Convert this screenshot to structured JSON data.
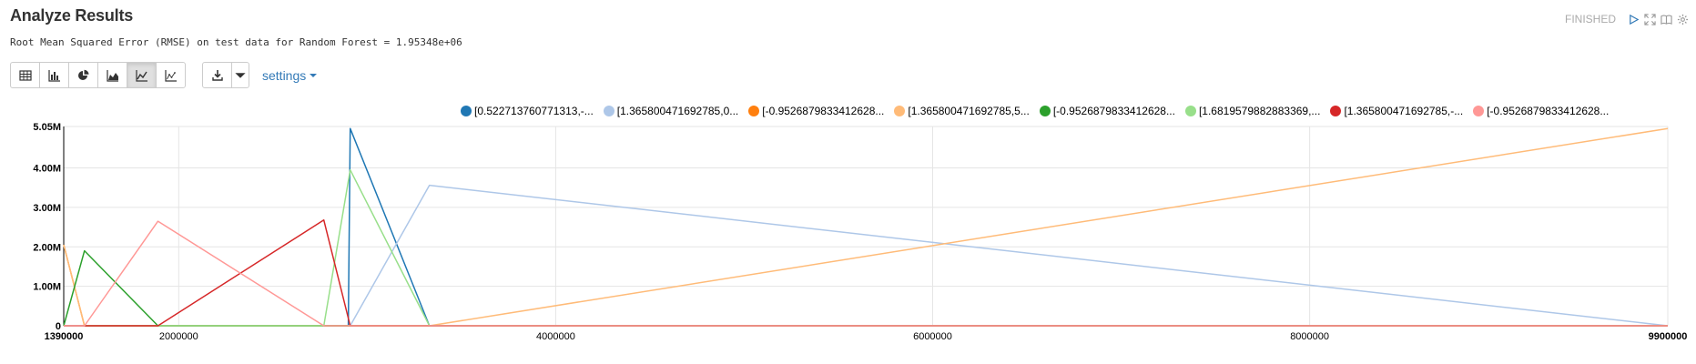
{
  "header": {
    "title": "Analyze Results",
    "status": "FINISHED",
    "icons": [
      "play-icon",
      "expand-icon",
      "book-icon",
      "gear-icon"
    ]
  },
  "rmse_text": "Root Mean Squared Error (RMSE) on test data for Random Forest = 1.95348e+06",
  "toolbar": {
    "chart_buttons": [
      "table",
      "bar-chart",
      "pie-chart",
      "area-chart",
      "line-chart",
      "scatter-chart"
    ],
    "active_button": "line-chart",
    "settings_label": "settings"
  },
  "chart_data": {
    "type": "line",
    "xlim": [
      1390000,
      9900000
    ],
    "ylim": [
      0,
      5050000
    ],
    "x_ticks": [
      {
        "value": 1390000,
        "label": "1390000",
        "bold": true
      },
      {
        "value": 2000000,
        "label": "2000000"
      },
      {
        "value": 4000000,
        "label": "4000000"
      },
      {
        "value": 6000000,
        "label": "6000000"
      },
      {
        "value": 8000000,
        "label": "8000000"
      },
      {
        "value": 9900000,
        "label": "9900000",
        "bold": true
      }
    ],
    "y_ticks": [
      {
        "value": 0,
        "label": "0"
      },
      {
        "value": 1000000,
        "label": "1.00M"
      },
      {
        "value": 2000000,
        "label": "2.00M"
      },
      {
        "value": 3000000,
        "label": "3.00M"
      },
      {
        "value": 4000000,
        "label": "4.00M"
      },
      {
        "value": 5050000,
        "label": "5.05M"
      }
    ],
    "grid": true,
    "legend_position": "top",
    "series": [
      {
        "name": "[0.522713760771313,-...",
        "color": "#1f77b4",
        "points": [
          [
            1390000,
            0
          ],
          [
            2900000,
            0
          ],
          [
            2900000,
            0
          ],
          [
            2910000,
            5000000
          ],
          [
            3330000,
            0
          ],
          [
            9900000,
            0
          ]
        ]
      },
      {
        "name": "[1.365800471692785,0...",
        "color": "#aec7e8",
        "points": [
          [
            1390000,
            0
          ],
          [
            2910000,
            0
          ],
          [
            3330000,
            3560000
          ],
          [
            9900000,
            0
          ]
        ]
      },
      {
        "name": "[-0.9526879833412628...",
        "color": "#ff7f0e",
        "points": [
          [
            1390000,
            2050000
          ],
          [
            1500000,
            0
          ],
          [
            9900000,
            0
          ]
        ]
      },
      {
        "name": "[1.365800471692785,5...",
        "color": "#ffbb78",
        "points": [
          [
            1390000,
            2050000
          ],
          [
            1500000,
            0
          ],
          [
            3330000,
            0
          ],
          [
            9900000,
            5000000
          ]
        ]
      },
      {
        "name": "[-0.9526879833412628...",
        "color": "#2ca02c",
        "points": [
          [
            1390000,
            0
          ],
          [
            1500000,
            1900000
          ],
          [
            1890000,
            0
          ],
          [
            9900000,
            0
          ]
        ]
      },
      {
        "name": "[1.6819579882883369,...",
        "color": "#98df8a",
        "points": [
          [
            1390000,
            0
          ],
          [
            2770000,
            0
          ],
          [
            2910000,
            3950000
          ],
          [
            3330000,
            0
          ],
          [
            9900000,
            0
          ]
        ]
      },
      {
        "name": "[1.365800471692785,-...",
        "color": "#d62728",
        "points": [
          [
            1390000,
            0
          ],
          [
            1890000,
            0
          ],
          [
            2770000,
            2680000
          ],
          [
            2910000,
            0
          ],
          [
            9900000,
            0
          ]
        ]
      },
      {
        "name": "[-0.9526879833412628...",
        "color": "#ff9896",
        "points": [
          [
            1390000,
            0
          ],
          [
            1500000,
            0
          ],
          [
            1890000,
            2650000
          ],
          [
            2770000,
            0
          ],
          [
            9900000,
            0
          ]
        ]
      }
    ]
  }
}
